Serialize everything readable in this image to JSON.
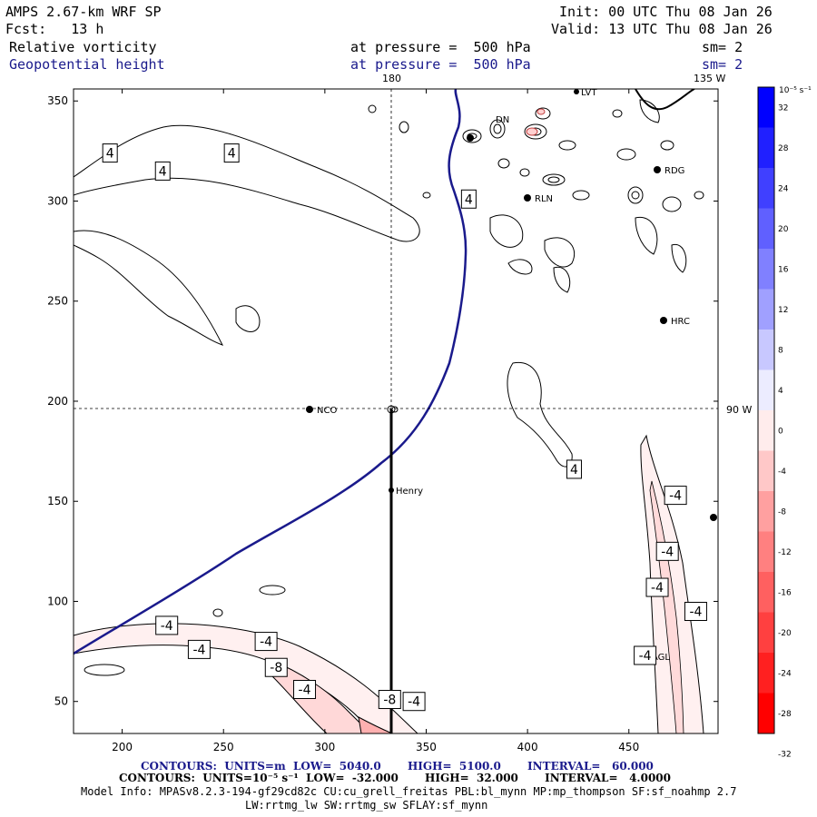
{
  "header": {
    "model": "AMPS 2.67-km WRF SP",
    "fcst": "Fcst:   13 h",
    "init": "Init: 00 UTC Thu 08 Jan 26",
    "valid": "Valid: 13 UTC Thu 08 Jan 26",
    "field1": "Relative vorticity",
    "field1_pressure": "at pressure =  500 hPa",
    "field1_sm": "sm= 2",
    "field2": "Geopotential height",
    "field2_pressure": "at pressure =  500 hPa",
    "field2_sm": "sm= 2"
  },
  "map_labels": {
    "lon_180": "180",
    "lon_135w": "135 W",
    "lon_90w": "90 W",
    "stations": [
      "NCO",
      "Henry",
      "RLN",
      "RDG",
      "HRC",
      "AGL",
      "LVT",
      "DN"
    ]
  },
  "footer": {
    "line1": "CONTOURS:  UNITS=m  LOW=  5040.0       HIGH=  5100.0       INTERVAL=   60.000",
    "line2": "CONTOURS:  UNITS=10⁻⁵ s⁻¹  LOW=  -32.000       HIGH=  32.000       INTERVAL=   4.0000",
    "line3": "Model Info: MPASv8.2.3-194-gf29cd82c CU:cu_grell_freitas PBL:bl_mynn MP:mp_thompson SF:sf_noahmp 2.7",
    "line4": "LW:rrtmg_lw SW:rrtmg_sw SFLAY:sf_mynn"
  },
  "colorbar": {
    "title": "10⁻⁵ s⁻¹",
    "ticks": [
      "32",
      "28",
      "24",
      "20",
      "16",
      "12",
      "8",
      "4",
      "0",
      "-4",
      "-8",
      "-12",
      "-16",
      "-20",
      "-24",
      "-28",
      "-32"
    ],
    "colors": [
      "#0000ff",
      "#2020ff",
      "#4040ff",
      "#6060ff",
      "#8080ff",
      "#a0a0ff",
      "#c8c8ff",
      "#ececff",
      "#ffecec",
      "#ffc8c8",
      "#ffa0a0",
      "#ff8080",
      "#ff6060",
      "#ff4040",
      "#ff2020",
      "#ff0000"
    ]
  },
  "chart_data": {
    "type": "contour_map",
    "title": "Relative vorticity and Geopotential height at 500 hPa",
    "x_ticks": [
      200,
      250,
      300,
      350,
      400,
      450
    ],
    "y_ticks": [
      50,
      100,
      150,
      200,
      250,
      300,
      350
    ],
    "xlim": [
      176,
      494
    ],
    "ylim": [
      34,
      356
    ],
    "contour_labels": [
      {
        "text": "4",
        "x": 194,
        "y": 324
      },
      {
        "text": "4",
        "x": 254,
        "y": 324
      },
      {
        "text": "4",
        "x": 220,
        "y": 315
      },
      {
        "text": "4",
        "x": 371,
        "y": 301
      },
      {
        "text": "4",
        "x": 423,
        "y": 166
      },
      {
        "text": "-4",
        "x": 222,
        "y": 88
      },
      {
        "text": "-4",
        "x": 238,
        "y": 76
      },
      {
        "text": "-4",
        "x": 271,
        "y": 80
      },
      {
        "text": "-8",
        "x": 276,
        "y": 67
      },
      {
        "text": "-4",
        "x": 290,
        "y": 56
      },
      {
        "text": "-8",
        "x": 332,
        "y": 51
      },
      {
        "text": "-4",
        "x": 344,
        "y": 50
      },
      {
        "text": "-4",
        "x": 473,
        "y": 153
      },
      {
        "text": "-4",
        "x": 469,
        "y": 125
      },
      {
        "text": "-4",
        "x": 464,
        "y": 107
      },
      {
        "text": "-4",
        "x": 483,
        "y": 95
      },
      {
        "text": "-4",
        "x": 458,
        "y": 73
      }
    ],
    "height_contour_m": 5100,
    "stations": [
      {
        "name": "NCO",
        "x": 293,
        "y": 195
      },
      {
        "name": "Henry",
        "x": 333,
        "y": 155
      },
      {
        "name": "RLN",
        "x": 402,
        "y": 300
      },
      {
        "name": "RDG",
        "x": 466,
        "y": 314
      },
      {
        "name": "HRC",
        "x": 468,
        "y": 239
      },
      {
        "name": "AGL",
        "x": 459,
        "y": 72
      }
    ],
    "cross_section": {
      "x": 333,
      "y_from": 196,
      "y_to": 34
    }
  }
}
